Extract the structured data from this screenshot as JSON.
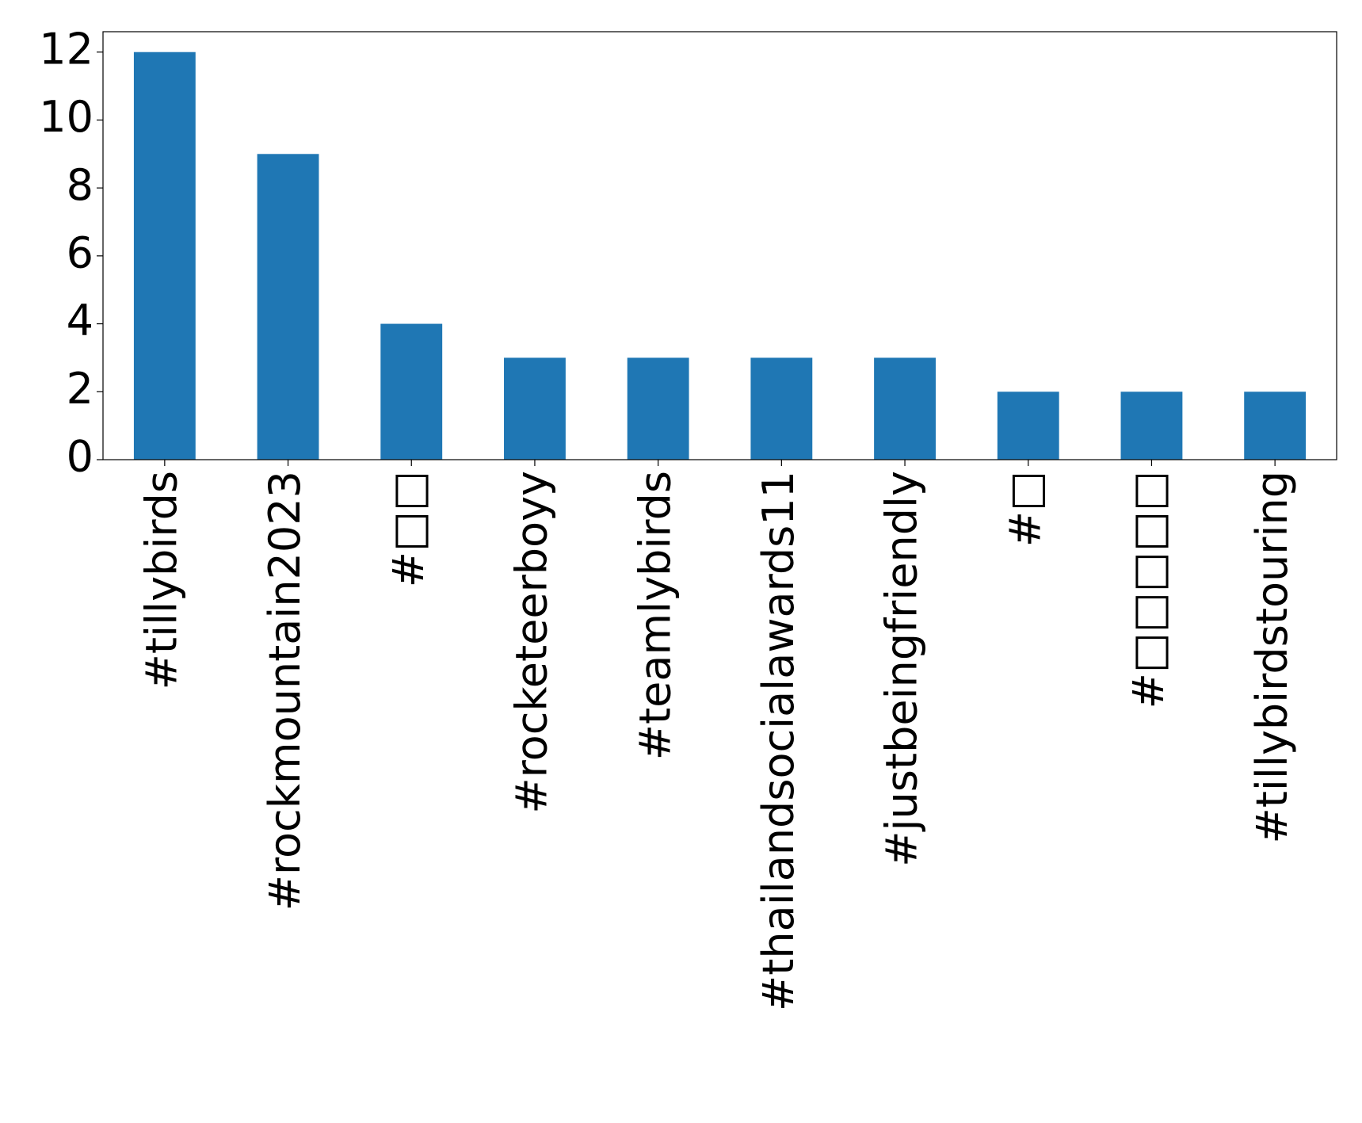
{
  "chart_data": {
    "type": "bar",
    "categories": [
      "#tillybirds",
      "#rockmountain2023",
      "#□□",
      "#rocketeerboyy",
      "#teamlybirds",
      "#thailandsocialawards11",
      "#justbeingfriendly",
      "#□",
      "#□□□□□",
      "#tillybirdstouring"
    ],
    "values": [
      12,
      9,
      4,
      3,
      3,
      3,
      3,
      2,
      2,
      2
    ],
    "color": "#1f77b4",
    "ylim": [
      0,
      12.6
    ],
    "yticks": [
      0,
      2,
      4,
      6,
      8,
      10,
      12
    ],
    "grid": false
  }
}
